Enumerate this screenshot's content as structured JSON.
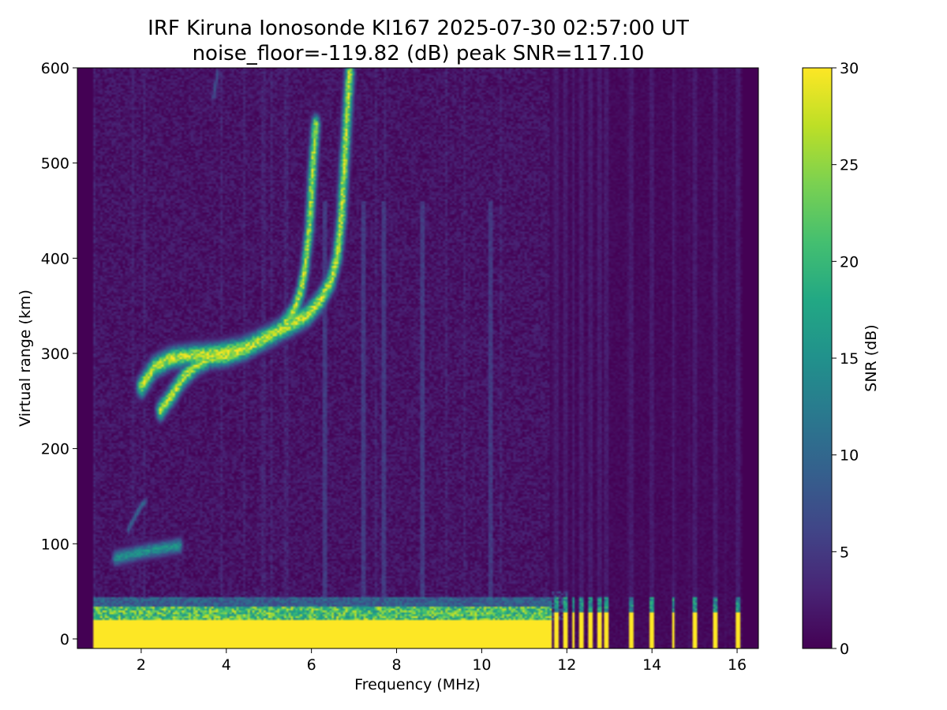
{
  "chart_data": {
    "type": "heatmap",
    "title_line1": "IRF Kiruna Ionosonde KI167 2025-07-30 02:57:00  UT",
    "title_line2": "noise_floor=-119.82 (dB) peak SNR=117.10",
    "xlabel": "Frequency (MHz)",
    "ylabel": "Virtual range (km)",
    "xlim": [
      0.5,
      16.5
    ],
    "ylim": [
      -10,
      600
    ],
    "xticks": [
      2,
      4,
      6,
      8,
      10,
      12,
      14,
      16
    ],
    "yticks": [
      0,
      100,
      200,
      300,
      400,
      500,
      600
    ],
    "data_freq_range_mhz": [
      0.9,
      16.1
    ],
    "colorbar": {
      "label": "SNR (dB)",
      "colormap": "viridis",
      "range": [
        0,
        30
      ],
      "ticks": [
        0,
        5,
        10,
        15,
        20,
        25,
        30
      ]
    },
    "traces": [
      {
        "name": "F-region O trace",
        "points": [
          [
            2.45,
            240
          ],
          [
            2.7,
            255
          ],
          [
            3.0,
            275
          ],
          [
            3.3,
            288
          ],
          [
            3.6,
            295
          ],
          [
            4.0,
            297
          ],
          [
            4.5,
            305
          ],
          [
            5.0,
            318
          ],
          [
            5.3,
            327
          ],
          [
            5.6,
            345
          ],
          [
            5.75,
            365
          ],
          [
            5.85,
            390
          ],
          [
            5.95,
            430
          ],
          [
            6.0,
            470
          ],
          [
            6.05,
            510
          ],
          [
            6.1,
            540
          ]
        ],
        "snr": 28,
        "width": 0.28
      },
      {
        "name": "F-region X trace",
        "points": [
          [
            2.0,
            265
          ],
          [
            2.3,
            285
          ],
          [
            2.7,
            295
          ],
          [
            3.2,
            298
          ],
          [
            3.8,
            300
          ],
          [
            4.4,
            305
          ],
          [
            5.0,
            318
          ],
          [
            5.5,
            330
          ],
          [
            5.9,
            340
          ],
          [
            6.2,
            355
          ],
          [
            6.45,
            375
          ],
          [
            6.6,
            400
          ],
          [
            6.7,
            440
          ],
          [
            6.75,
            480
          ],
          [
            6.8,
            520
          ],
          [
            6.85,
            560
          ],
          [
            6.9,
            595
          ]
        ],
        "snr": 29,
        "width": 0.3
      },
      {
        "name": "E trace",
        "points": [
          [
            1.4,
            85
          ],
          [
            1.7,
            88
          ],
          [
            2.1,
            92
          ],
          [
            2.5,
            95
          ],
          [
            2.9,
            98
          ]
        ],
        "snr": 16,
        "width": 0.22
      },
      {
        "name": "low echo",
        "points": [
          [
            1.7,
            115
          ],
          [
            1.85,
            128
          ],
          [
            2.0,
            140
          ],
          [
            2.1,
            145
          ]
        ],
        "snr": 10,
        "width": 0.12
      },
      {
        "name": "multi-hop",
        "points": [
          [
            3.7,
            570
          ],
          [
            3.8,
            595
          ]
        ],
        "snr": 9,
        "width": 0.12
      }
    ],
    "vertical_streaks_mhz": [
      6.3,
      7.2,
      7.7,
      8.6,
      10.2
    ],
    "ground_band_km": [
      -10,
      20
    ],
    "ground_band_cutoff_mhz": 11.65,
    "pulse_columns_mhz": [
      11.75,
      11.95,
      12.15,
      12.35,
      12.55,
      12.75,
      12.95,
      13.5,
      14.0,
      14.5,
      15.0,
      15.5,
      16.0
    ]
  }
}
